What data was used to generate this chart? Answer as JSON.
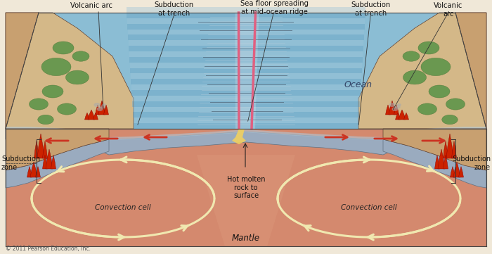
{
  "copyright": "© 2011 Pearson Education, Inc.",
  "bg_color": "#f0e8d8",
  "colors": {
    "mantle": "#d4896e",
    "mantle_dark": "#c07858",
    "ocean_blue": "#8bbdd4",
    "ocean_blue2": "#a8cfe0",
    "ocean_stripe": "#6a9db8",
    "crust_gray": "#9aabbf",
    "crust_blue": "#7090a8",
    "crust_light": "#b0c8d8",
    "land_brown": "#c8a070",
    "land_tan": "#d4b888",
    "land_green": "#789060",
    "green_veg": "#6a9850",
    "green_dark": "#4a7838",
    "volcano_red": "#cc2200",
    "lava_orange": "#e06020",
    "ridge_pink": "#e06080",
    "arrow_red": "#cc3322",
    "arrow_cream": "#f0e8b0",
    "hot_yellow": "#f0d060",
    "border": "#444444",
    "white": "#ffffff"
  },
  "labels": {
    "volcanic_arc_left": "Volcanic arc",
    "subduction_left": "Subduction\nat trench",
    "seafloor": "Sea floor spreading\nat mid-ocean ridge",
    "subduction_right": "Subduction\nat trench",
    "volcanic_arc_right": "Volcanic\narc",
    "ocean": "Ocean",
    "subduction_zone_left": "Subduction\nzone",
    "subduction_zone_right": "Subduction\nzone",
    "hot_molten": "Hot molten\nrock to\nsurface",
    "convection_left": "Convection cell",
    "convection_right": "Convection cell",
    "mantle": "Mantle"
  }
}
